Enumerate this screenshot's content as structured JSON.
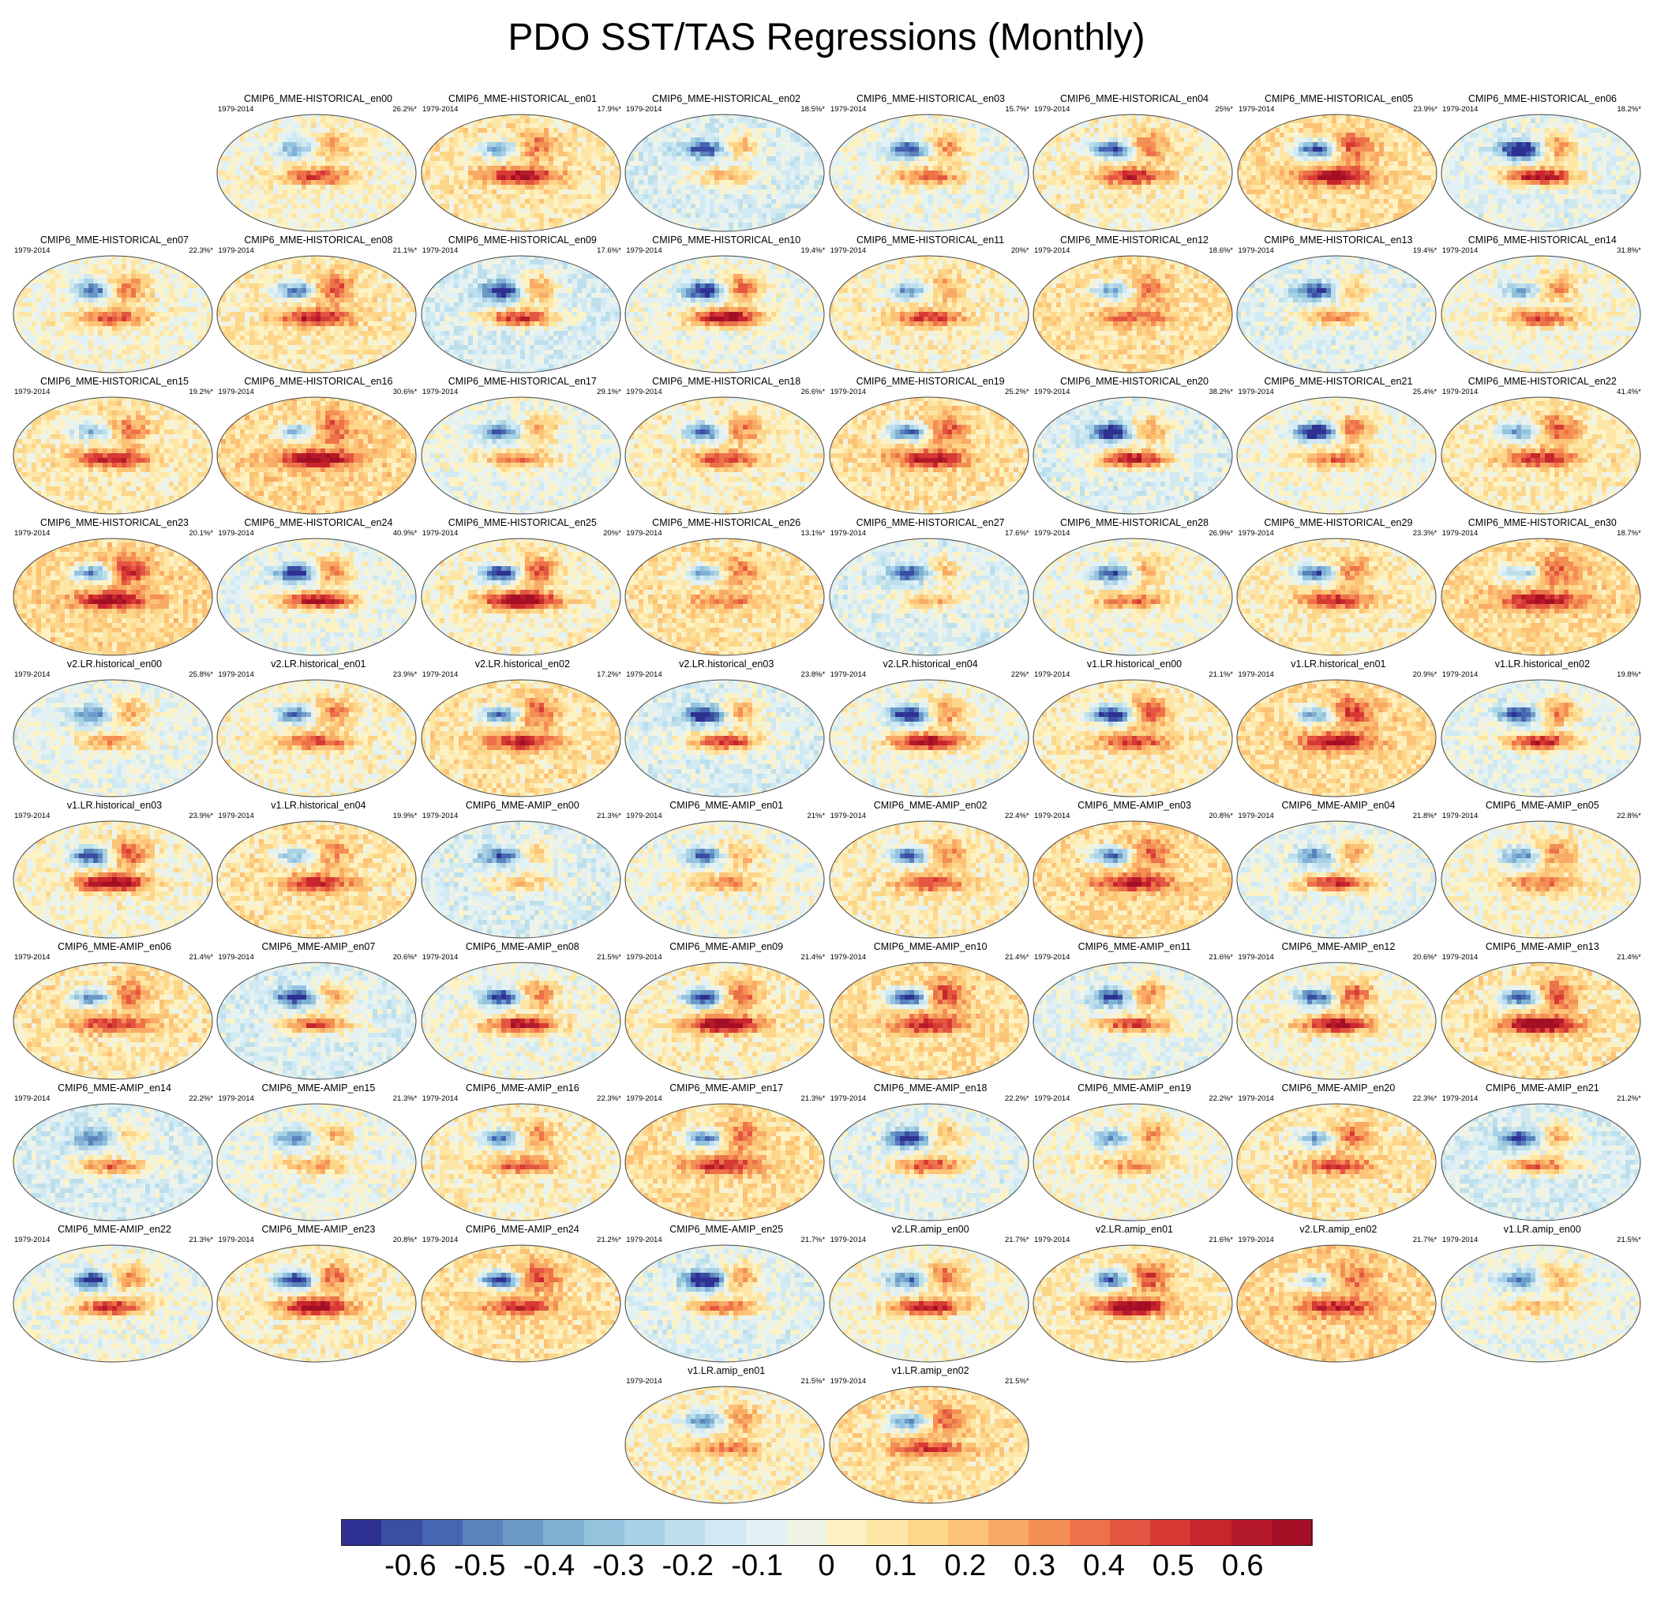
{
  "chart_data": {
    "type": "heatmap",
    "title": "PDO SST/TAS Regressions (Monthly)",
    "period": "1979-2014",
    "colorbar": {
      "tick_labels": [
        "-0.6",
        "-0.5",
        "-0.4",
        "-0.3",
        "-0.2",
        "-0.1",
        "0",
        "0.1",
        "0.2",
        "0.3",
        "0.4",
        "0.5",
        "0.6"
      ],
      "tick_values": [
        -0.6,
        -0.5,
        -0.4,
        -0.3,
        -0.2,
        -0.1,
        0,
        0.1,
        0.2,
        0.3,
        0.4,
        0.5,
        0.6
      ],
      "range": [
        -0.7,
        0.7
      ],
      "colors": [
        "#2e3192",
        "#3a4ea3",
        "#4766b1",
        "#5a82bd",
        "#6c9ac8",
        "#80b0d4",
        "#94c3de",
        "#a9d2e6",
        "#bddfec",
        "#d0e9f2",
        "#e1f1f5",
        "#eef3e6",
        "#fdf2c4",
        "#fde6a6",
        "#fdd68a",
        "#fcc376",
        "#f9aa64",
        "#f48f54",
        "#ed7249",
        "#e35641",
        "#d73a35",
        "#c8252d",
        "#b51a2a",
        "#a50f26"
      ]
    },
    "panels": [
      {
        "name": "CMIP6_MME-HISTORICAL_en00",
        "variance": "26.2%*"
      },
      {
        "name": "CMIP6_MME-HISTORICAL_en01",
        "variance": "17.9%*"
      },
      {
        "name": "CMIP6_MME-HISTORICAL_en02",
        "variance": "18.5%*"
      },
      {
        "name": "CMIP6_MME-HISTORICAL_en03",
        "variance": "15.7%*"
      },
      {
        "name": "CMIP6_MME-HISTORICAL_en04",
        "variance": "25%*"
      },
      {
        "name": "CMIP6_MME-HISTORICAL_en05",
        "variance": "23.9%*"
      },
      {
        "name": "CMIP6_MME-HISTORICAL_en06",
        "variance": "18.2%*"
      },
      {
        "name": "CMIP6_MME-HISTORICAL_en07",
        "variance": "22.3%*"
      },
      {
        "name": "CMIP6_MME-HISTORICAL_en08",
        "variance": "21.1%*"
      },
      {
        "name": "CMIP6_MME-HISTORICAL_en09",
        "variance": "17.6%*"
      },
      {
        "name": "CMIP6_MME-HISTORICAL_en10",
        "variance": "19.4%*"
      },
      {
        "name": "CMIP6_MME-HISTORICAL_en11",
        "variance": "20%*"
      },
      {
        "name": "CMIP6_MME-HISTORICAL_en12",
        "variance": "18.6%*"
      },
      {
        "name": "CMIP6_MME-HISTORICAL_en13",
        "variance": "19.4%*"
      },
      {
        "name": "CMIP6_MME-HISTORICAL_en14",
        "variance": "31.8%*"
      },
      {
        "name": "CMIP6_MME-HISTORICAL_en15",
        "variance": "19.2%*"
      },
      {
        "name": "CMIP6_MME-HISTORICAL_en16",
        "variance": "30.6%*"
      },
      {
        "name": "CMIP6_MME-HISTORICAL_en17",
        "variance": "29.1%*"
      },
      {
        "name": "CMIP6_MME-HISTORICAL_en18",
        "variance": "26.6%*"
      },
      {
        "name": "CMIP6_MME-HISTORICAL_en19",
        "variance": "25.2%*"
      },
      {
        "name": "CMIP6_MME-HISTORICAL_en20",
        "variance": "38.2%*"
      },
      {
        "name": "CMIP6_MME-HISTORICAL_en21",
        "variance": "25.4%*"
      },
      {
        "name": "CMIP6_MME-HISTORICAL_en22",
        "variance": "41.4%*"
      },
      {
        "name": "CMIP6_MME-HISTORICAL_en23",
        "variance": "20.1%*"
      },
      {
        "name": "CMIP6_MME-HISTORICAL_en24",
        "variance": "40.9%*"
      },
      {
        "name": "CMIP6_MME-HISTORICAL_en25",
        "variance": "20%*"
      },
      {
        "name": "CMIP6_MME-HISTORICAL_en26",
        "variance": "13.1%*"
      },
      {
        "name": "CMIP6_MME-HISTORICAL_en27",
        "variance": "17.6%*"
      },
      {
        "name": "CMIP6_MME-HISTORICAL_en28",
        "variance": "26.9%*"
      },
      {
        "name": "CMIP6_MME-HISTORICAL_en29",
        "variance": "23.3%*"
      },
      {
        "name": "CMIP6_MME-HISTORICAL_en30",
        "variance": "18.7%*"
      },
      {
        "name": "v2.LR.historical_en00",
        "variance": "25.8%*"
      },
      {
        "name": "v2.LR.historical_en01",
        "variance": "23.9%*"
      },
      {
        "name": "v2.LR.historical_en02",
        "variance": "17.2%*"
      },
      {
        "name": "v2.LR.historical_en03",
        "variance": "23.8%*"
      },
      {
        "name": "v2.LR.historical_en04",
        "variance": "22%*"
      },
      {
        "name": "v1.LR.historical_en00",
        "variance": "21.1%*"
      },
      {
        "name": "v1.LR.historical_en01",
        "variance": "20.9%*"
      },
      {
        "name": "v1.LR.historical_en02",
        "variance": "19.8%*"
      },
      {
        "name": "v1.LR.historical_en03",
        "variance": "23.9%*"
      },
      {
        "name": "v1.LR.historical_en04",
        "variance": "19.9%*"
      },
      {
        "name": "CMIP6_MME-AMIP_en00",
        "variance": "21.3%*"
      },
      {
        "name": "CMIP6_MME-AMIP_en01",
        "variance": "21%*"
      },
      {
        "name": "CMIP6_MME-AMIP_en02",
        "variance": "22.4%*"
      },
      {
        "name": "CMIP6_MME-AMIP_en03",
        "variance": "20.8%*"
      },
      {
        "name": "CMIP6_MME-AMIP_en04",
        "variance": "21.8%*"
      },
      {
        "name": "CMIP6_MME-AMIP_en05",
        "variance": "22.8%*"
      },
      {
        "name": "CMIP6_MME-AMIP_en06",
        "variance": "21.4%*"
      },
      {
        "name": "CMIP6_MME-AMIP_en07",
        "variance": "20.6%*"
      },
      {
        "name": "CMIP6_MME-AMIP_en08",
        "variance": "21.5%*"
      },
      {
        "name": "CMIP6_MME-AMIP_en09",
        "variance": "21.4%*"
      },
      {
        "name": "CMIP6_MME-AMIP_en10",
        "variance": "21.4%*"
      },
      {
        "name": "CMIP6_MME-AMIP_en11",
        "variance": "21.6%*"
      },
      {
        "name": "CMIP6_MME-AMIP_en12",
        "variance": "20.6%*"
      },
      {
        "name": "CMIP6_MME-AMIP_en13",
        "variance": "21.4%*"
      },
      {
        "name": "CMIP6_MME-AMIP_en14",
        "variance": "22.2%*"
      },
      {
        "name": "CMIP6_MME-AMIP_en15",
        "variance": "21.3%*"
      },
      {
        "name": "CMIP6_MME-AMIP_en16",
        "variance": "22.3%*"
      },
      {
        "name": "CMIP6_MME-AMIP_en17",
        "variance": "21.3%*"
      },
      {
        "name": "CMIP6_MME-AMIP_en18",
        "variance": "22.2%*"
      },
      {
        "name": "CMIP6_MME-AMIP_en19",
        "variance": "22.2%*"
      },
      {
        "name": "CMIP6_MME-AMIP_en20",
        "variance": "22.3%*"
      },
      {
        "name": "CMIP6_MME-AMIP_en21",
        "variance": "21.2%*"
      },
      {
        "name": "CMIP6_MME-AMIP_en22",
        "variance": "21.3%*"
      },
      {
        "name": "CMIP6_MME-AMIP_en23",
        "variance": "20.8%*"
      },
      {
        "name": "CMIP6_MME-AMIP_en24",
        "variance": "21.2%*"
      },
      {
        "name": "CMIP6_MME-AMIP_en25",
        "variance": "21.7%*"
      },
      {
        "name": "v2.LR.amip_en00",
        "variance": "21.7%*"
      },
      {
        "name": "v2.LR.amip_en01",
        "variance": "21.6%*"
      },
      {
        "name": "v2.LR.amip_en02",
        "variance": "21.7%*"
      },
      {
        "name": "v1.LR.amip_en00",
        "variance": "21.5%*"
      },
      {
        "name": "v1.LR.amip_en01",
        "variance": "21.5%*"
      },
      {
        "name": "v1.LR.amip_en02",
        "variance": "21.5%*"
      }
    ]
  }
}
